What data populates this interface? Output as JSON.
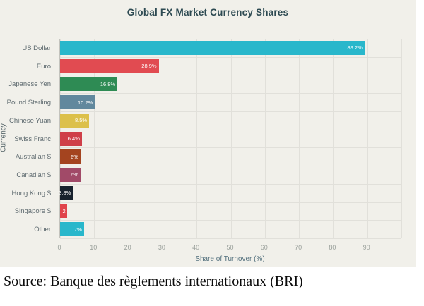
{
  "title": "Global FX Market Currency Shares",
  "source_caption": "Source: Banque des règlements internationaux (BRI)",
  "colors": {
    "chart_background": "#f1f0ea",
    "page_background": "#ffffff",
    "title_text": "#2d4a52",
    "grid": "#e1e0da",
    "axis_line": "#c3c3bd",
    "category_text": "#5f6b70",
    "tick_text": "#9aa09b",
    "value_text": "#ffffff"
  },
  "chart_data": {
    "type": "bar",
    "orientation": "horizontal",
    "title": "Global FX Market Currency Shares",
    "xlabel": "Share of Turnover (%)",
    "ylabel": "Currency",
    "xlim": [
      0,
      100
    ],
    "x_ticks": [
      0,
      10,
      20,
      30,
      40,
      50,
      60,
      70,
      80,
      90
    ],
    "grid": true,
    "legend": false,
    "categories": [
      "US Dollar",
      "Euro",
      "Japanese Yen",
      "Pound Sterling",
      "Chinese Yuan",
      "Swiss Franc",
      "Australian $",
      "Canadian $",
      "Hong Kong $",
      "Singapore $",
      "Other"
    ],
    "values": [
      89.2,
      28.9,
      16.8,
      10.2,
      8.5,
      6.4,
      6,
      6,
      3.8,
      2,
      7
    ],
    "value_labels": [
      "89.2%",
      "28.9%",
      "16.8%",
      "10.2%",
      "8.5%",
      "6.4%",
      "6%",
      "6%",
      "3.8%",
      "2",
      "7%"
    ],
    "bar_colors": [
      "#29b7cb",
      "#e14b51",
      "#2e8b54",
      "#61889d",
      "#dcc04a",
      "#cf3f48",
      "#a4441f",
      "#a14a68",
      "#17222d",
      "#e0434b",
      "#29b7cb"
    ]
  }
}
